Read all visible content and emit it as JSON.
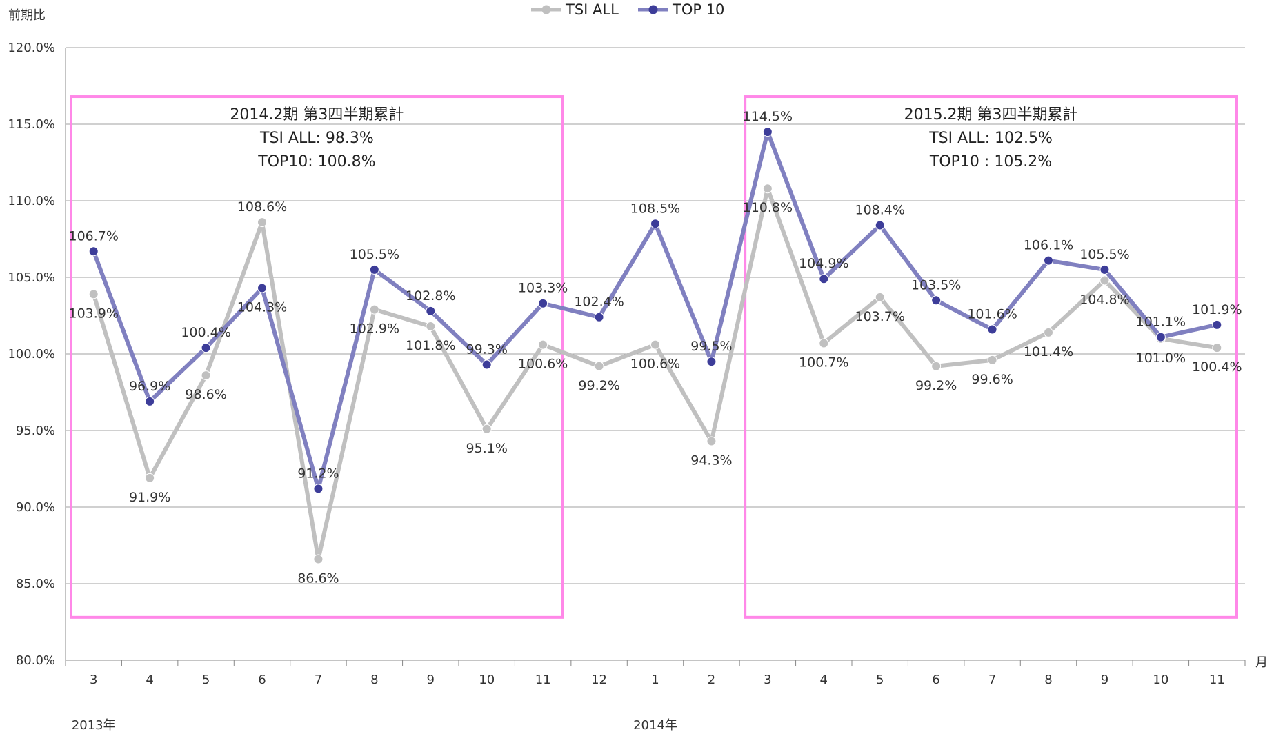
{
  "chart_data": {
    "type": "line",
    "ylabel": "前期比",
    "xlabel": "月",
    "ylim": [
      80,
      120
    ],
    "ytick_labels": [
      "80.0%",
      "85.0%",
      "90.0%",
      "95.0%",
      "100.0%",
      "105.0%",
      "110.0%",
      "115.0%",
      "120.0%"
    ],
    "categories": [
      "3",
      "4",
      "5",
      "6",
      "7",
      "8",
      "9",
      "10",
      "11",
      "12",
      "1",
      "2",
      "3",
      "4",
      "5",
      "6",
      "7",
      "8",
      "9",
      "10",
      "11"
    ],
    "year_labels": [
      {
        "label": "2013年",
        "at_index": 0
      },
      {
        "label": "2014年",
        "at_index": 10
      }
    ],
    "grid": "horizontal",
    "legend_position": "top-center",
    "series": [
      {
        "name": "TSI ALL",
        "color": "#c0c0c0",
        "values": [
          103.9,
          91.9,
          98.6,
          108.6,
          86.6,
          102.9,
          101.8,
          95.1,
          100.6,
          99.2,
          100.6,
          94.3,
          110.8,
          100.7,
          103.7,
          99.2,
          99.6,
          101.4,
          104.8,
          101.0,
          100.4
        ],
        "labels": [
          "103.9%",
          "91.9%",
          "98.6%",
          "108.6%",
          "86.6%",
          "102.9%",
          "101.8%",
          "95.1%",
          "100.6%",
          "99.2%",
          "100.6%",
          "94.3%",
          "110.8%",
          "100.7%",
          "103.7%",
          "99.2%",
          "99.6%",
          "101.4%",
          "104.8%",
          "101.0%",
          "100.4%"
        ]
      },
      {
        "name": "TOP 10",
        "color": "#8080c0",
        "marker_color": "#3d3d99",
        "values": [
          106.7,
          96.9,
          100.4,
          104.3,
          91.2,
          105.5,
          102.8,
          99.3,
          103.3,
          102.4,
          108.5,
          99.5,
          114.5,
          104.9,
          108.4,
          103.5,
          101.6,
          106.1,
          105.5,
          101.1,
          101.9
        ],
        "labels": [
          "106.7%",
          "96.9%",
          "100.4%",
          "104.3%",
          "91.2%",
          "105.5%",
          "102.8%",
          "99.3%",
          "103.3%",
          "102.4%",
          "108.5%",
          "99.5%",
          "114.5%",
          "104.9%",
          "108.4%",
          "103.5%",
          "101.6%",
          "106.1%",
          "105.5%",
          "101.1%",
          "101.9%"
        ]
      }
    ],
    "annotations": [
      {
        "color": "#ff88e8",
        "start_index": 0,
        "end_index": 8,
        "lines": [
          "2014.2期 第3四半期累計",
          "TSI ALL: 98.3%",
          "TOP10: 100.8%"
        ]
      },
      {
        "color": "#ff88e8",
        "start_index": 12,
        "end_index": 20,
        "lines": [
          "2015.2期 第3四半期累計",
          "TSI ALL: 102.5%",
          "TOP10 : 105.2%"
        ]
      }
    ]
  }
}
